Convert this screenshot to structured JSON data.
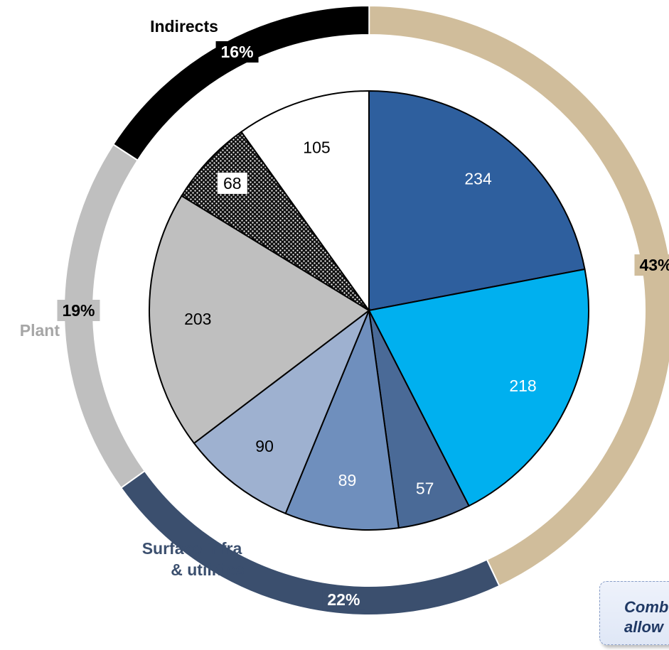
{
  "chart_data": {
    "type": "pie",
    "title": "",
    "inner_pie": {
      "slices": [
        {
          "value": 234,
          "label": "234",
          "color": "#2e5f9e"
        },
        {
          "value": 218,
          "label": "218",
          "color": "#00b0ef"
        },
        {
          "value": 57,
          "label": "57",
          "color": "#4a6a97"
        },
        {
          "value": 89,
          "label": "89",
          "color": "#6f8fbd"
        },
        {
          "value": 90,
          "label": "90",
          "color": "#9eb1d0"
        },
        {
          "value": 203,
          "label": "203",
          "color": "#bfbfbf"
        },
        {
          "value": 68,
          "label": "68",
          "color": "#111111",
          "pattern": "dotted"
        },
        {
          "value": 105,
          "label": "105",
          "color": "#ffffff"
        }
      ]
    },
    "outer_ring": {
      "groups": [
        {
          "name": "",
          "percent": "43%",
          "color": "#d0bd9b",
          "share": 0.4297
        },
        {
          "name": "Surface infra\n& utilities",
          "percent": "22%",
          "color": "#3b4f6e",
          "share": 0.2214
        },
        {
          "name": "Plant",
          "percent": "19%",
          "color": "#bfbfbf",
          "share": 0.1906
        },
        {
          "name": "Indirects",
          "percent": "16%",
          "color": "#000000",
          "share": 0.1584
        }
      ]
    }
  },
  "note": {
    "text": "Comb\nallow"
  }
}
